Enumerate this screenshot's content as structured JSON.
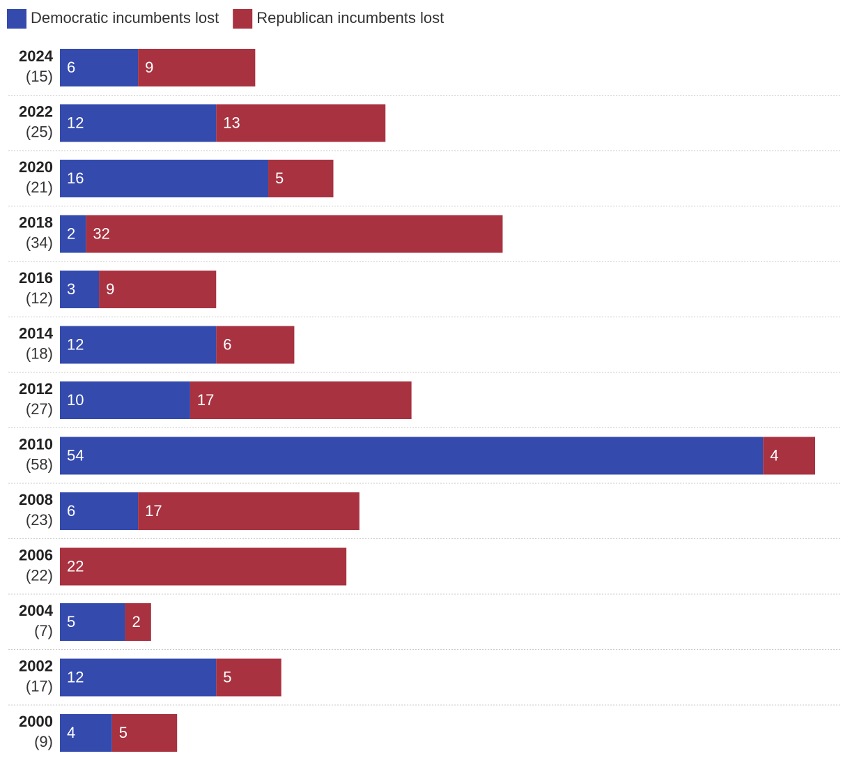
{
  "chart_data": {
    "type": "stacked-bar-horizontal",
    "categories": [
      "2024",
      "2022",
      "2020",
      "2018",
      "2016",
      "2014",
      "2012",
      "2010",
      "2008",
      "2006",
      "2004",
      "2002",
      "2000"
    ],
    "category_sublabels": [
      "(15)",
      "(25)",
      "(21)",
      "(34)",
      "(12)",
      "(18)",
      "(27)",
      "(58)",
      "(23)",
      "(22)",
      "(7)",
      "(17)",
      "(9)"
    ],
    "series": [
      {
        "name": "Democratic incumbents lost",
        "color": "#344aad",
        "values": [
          6,
          12,
          16,
          2,
          3,
          12,
          10,
          54,
          6,
          0,
          5,
          12,
          4
        ]
      },
      {
        "name": "Republican incumbents lost",
        "color": "#a83240",
        "values": [
          9,
          13,
          5,
          32,
          9,
          6,
          17,
          4,
          17,
          22,
          2,
          5,
          5
        ]
      }
    ],
    "xlim": [
      0,
      58
    ],
    "legend": "top-left"
  }
}
